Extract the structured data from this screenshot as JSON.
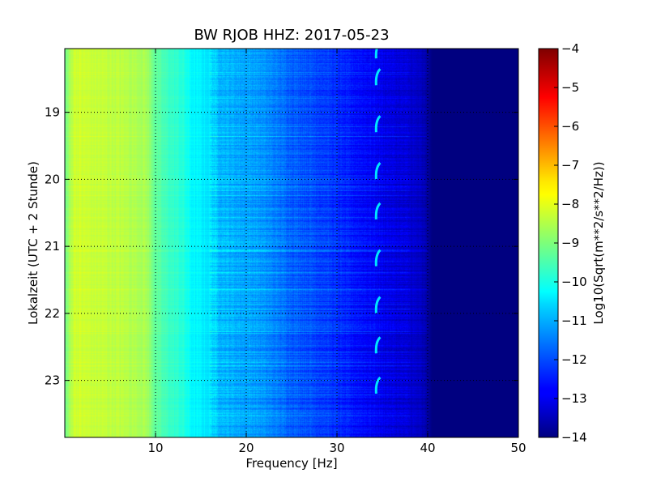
{
  "chart_data": {
    "type": "heatmap",
    "title": "BW RJOB HHZ: 2017-05-23",
    "xlabel": "Frequency [Hz]",
    "ylabel": "Lokalzeit (UTC + 2 Stunde)",
    "xlim": [
      0,
      50
    ],
    "ylim": [
      18.05,
      23.85
    ],
    "y_axis_inverted": true,
    "x_ticks": [
      10,
      20,
      30,
      40,
      50
    ],
    "y_ticks": [
      19,
      20,
      21,
      22,
      23
    ],
    "grid": true,
    "colormap": "jet",
    "colorbar": {
      "label": "Log10(Sqrt(m**2/s**2/Hz))",
      "range": [
        -14,
        -4
      ],
      "ticks": [
        -4,
        -5,
        -6,
        -7,
        -8,
        -9,
        -10,
        -11,
        -12,
        -13,
        -14
      ]
    },
    "frequency_profile": {
      "frequency_hz": [
        0,
        1,
        3,
        6,
        9,
        10,
        11,
        13,
        14,
        16,
        17,
        19,
        21,
        23,
        25,
        27,
        29,
        31,
        33,
        34,
        35,
        36,
        38,
        39,
        40,
        40.5,
        50
      ],
      "level_log10": [
        -9.2,
        -8.2,
        -8.3,
        -8.4,
        -8.6,
        -9.3,
        -9.6,
        -9.9,
        -10.3,
        -10.5,
        -10.9,
        -11.1,
        -11.2,
        -11.5,
        -11.8,
        -12.0,
        -12.2,
        -12.5,
        -12.7,
        -12.8,
        -12.95,
        -13.05,
        -13.2,
        -13.35,
        -13.65,
        -14.0,
        -14.0
      ]
    },
    "features": {
      "peak_track_frequency_hz": 34.5,
      "peak_track_times": [
        18.1,
        18.5,
        19.2,
        19.9,
        20.5,
        21.2,
        21.9,
        22.5,
        23.1
      ]
    }
  }
}
